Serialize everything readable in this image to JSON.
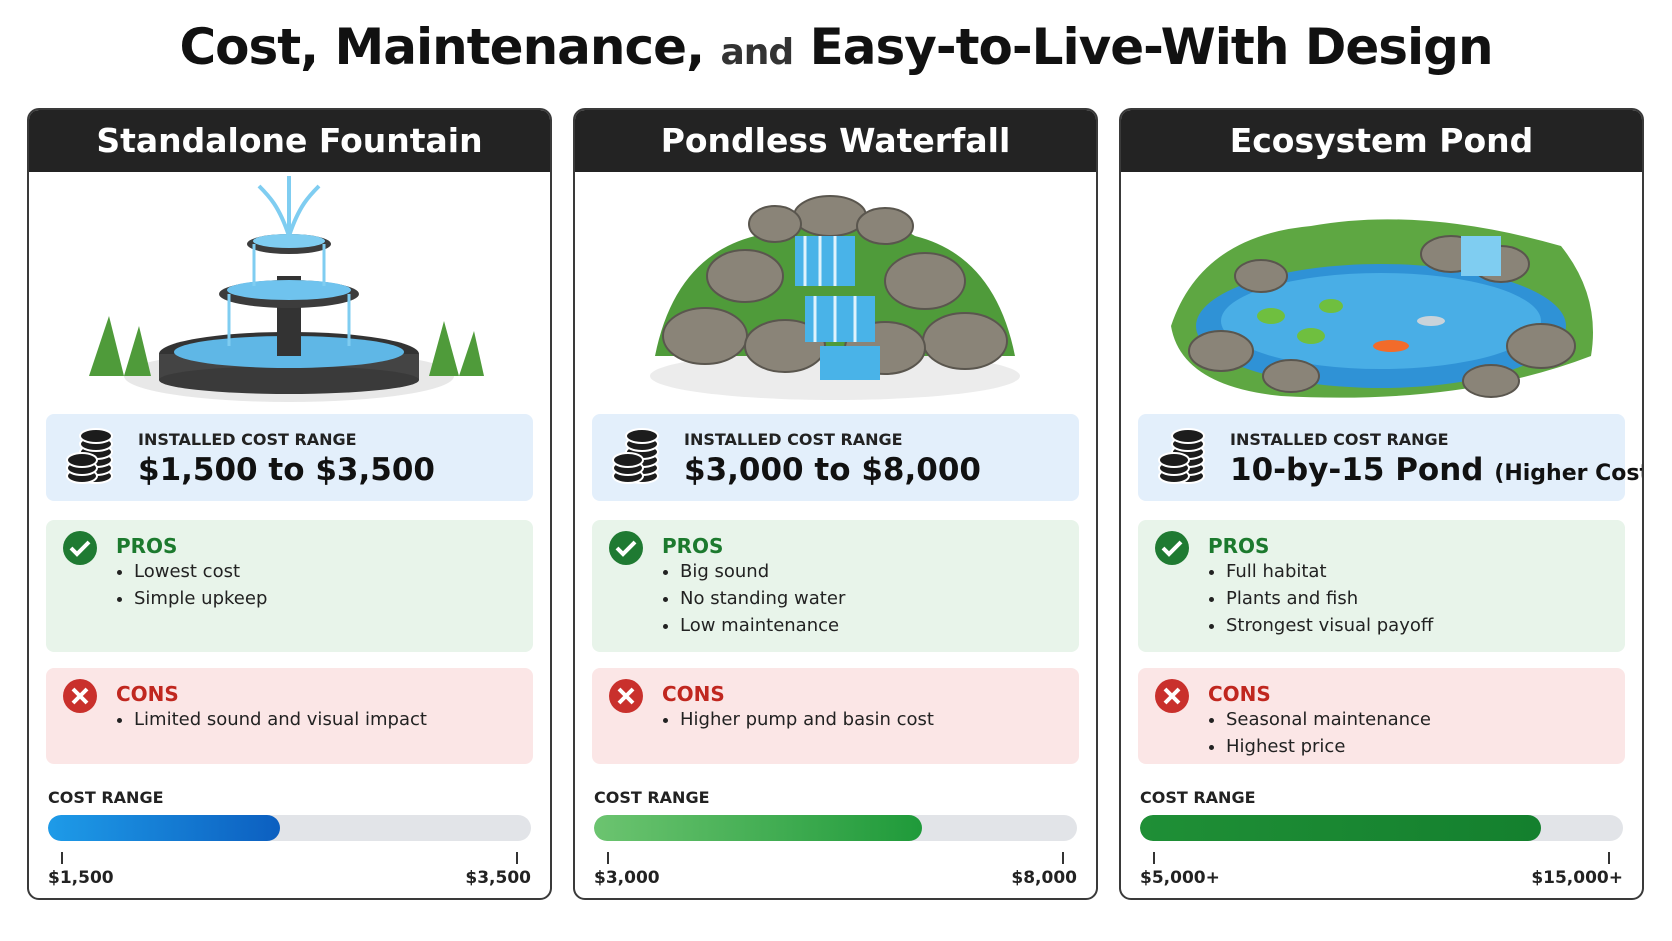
{
  "title": {
    "part1": "Cost, Maintenance,",
    "part2": "and",
    "part3": "Easy-to-Live-With Design"
  },
  "cards": [
    {
      "title": "Standalone Fountain",
      "cost_label": "INSTALLED COST RANGE",
      "cost": "$1,500 to $3,500",
      "cost_note": null,
      "pros_label": "PROS",
      "pros": [
        "Lowest cost",
        "Simple upkeep"
      ],
      "cons_label": "CONS",
      "cons": [
        "Limited sound and visual impact"
      ],
      "range_label": "COST RANGE",
      "range_min": "$1,500",
      "range_max": "$3,500"
    },
    {
      "title": "Pondless Waterfall",
      "cost_label": "INSTALLED COST RANGE",
      "cost": "$3,000 to $8,000",
      "cost_note": null,
      "pros_label": "PROS",
      "pros": [
        "Big sound",
        "No standing water",
        "Low maintenance"
      ],
      "cons_label": "CONS",
      "cons": [
        "Higher pump and basin cost"
      ],
      "range_label": "COST RANGE",
      "range_min": "$3,000",
      "range_max": "$8,000"
    },
    {
      "title": "Ecosystem Pond",
      "cost_label": "INSTALLED COST RANGE",
      "cost": "10-by-15 Pond",
      "cost_note": "(Higher Cost)",
      "pros_label": "PROS",
      "pros": [
        "Full habitat",
        "Plants and fish",
        "Strongest visual payoff"
      ],
      "cons_label": "CONS",
      "cons": [
        "Seasonal maintenance",
        "Highest price"
      ],
      "range_label": "COST RANGE",
      "range_min": "$5,000+",
      "range_max": "$15,000+"
    }
  ]
}
